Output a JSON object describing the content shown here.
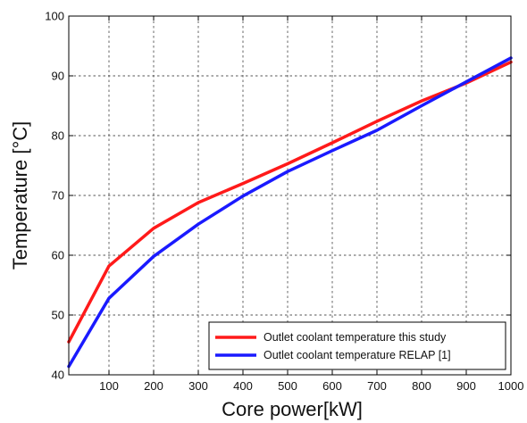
{
  "chart_data": {
    "type": "line",
    "xlabel": "Core power[kW]",
    "ylabel": "Temperature  [°C]",
    "xlim": [
      10,
      1000
    ],
    "ylim": [
      40,
      100
    ],
    "xticks": [
      100,
      200,
      300,
      400,
      500,
      600,
      700,
      800,
      900,
      1000
    ],
    "yticks": [
      40,
      50,
      60,
      70,
      80,
      90,
      100
    ],
    "grid": true,
    "grid_style": "dashed",
    "legend_position": "bottom-right",
    "series": [
      {
        "name": "Outlet coolant temperature this study",
        "color": "#ff1a1a",
        "x": [
          10,
          100,
          200,
          300,
          400,
          500,
          600,
          700,
          800,
          900,
          1000
        ],
        "y": [
          45.5,
          58.2,
          64.5,
          68.8,
          72.0,
          75.3,
          78.8,
          82.4,
          85.8,
          88.8,
          92.3
        ]
      },
      {
        "name": "Outlet coolant temperature RELAP [1]",
        "color": "#1a1aff",
        "x": [
          10,
          100,
          200,
          300,
          400,
          500,
          600,
          700,
          800,
          900,
          1000
        ],
        "y": [
          41.4,
          52.8,
          59.8,
          65.2,
          69.9,
          74.0,
          77.5,
          80.9,
          85.0,
          89.0,
          93.0
        ]
      }
    ]
  }
}
